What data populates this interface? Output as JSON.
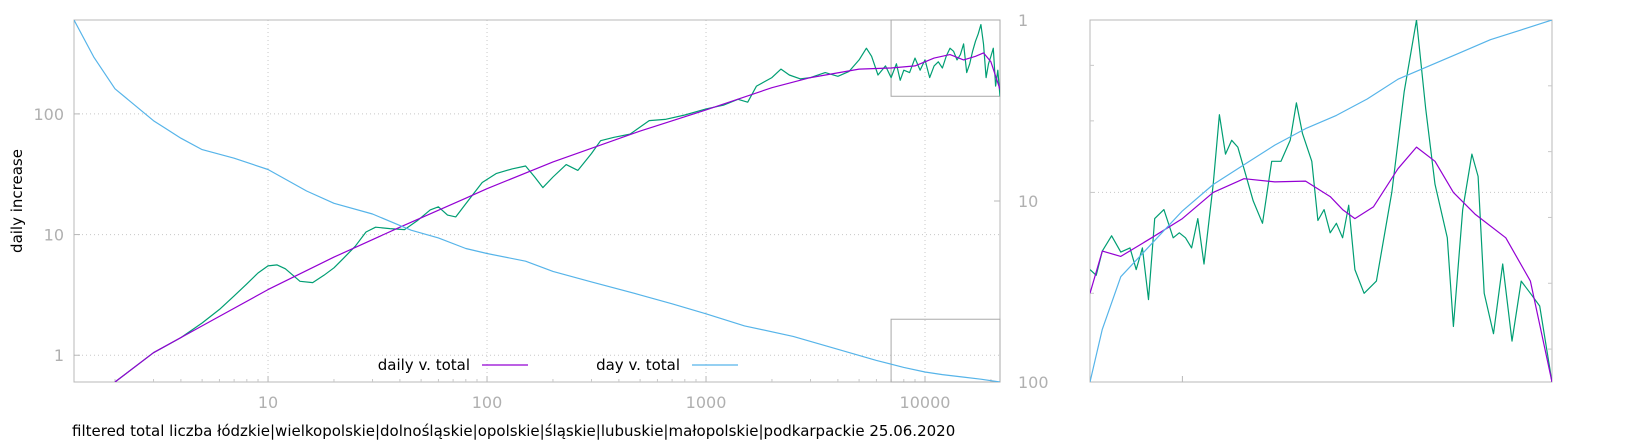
{
  "chart_data": [
    {
      "type": "line",
      "ylabel": "daily increase",
      "xlog": true,
      "ylog": true,
      "xlim": [
        1.3,
        22000
      ],
      "ylim": [
        0.6,
        600
      ],
      "y2lim": [
        1,
        100
      ],
      "y2_reversed": true,
      "grid": true,
      "legend_position": "bottom-center",
      "x_ticks": [
        10,
        100,
        1000,
        10000
      ],
      "x_tick_labels": [
        "10",
        "100",
        "1000",
        "10000"
      ],
      "y_ticks": [
        1,
        10,
        100
      ],
      "y_tick_labels": [
        "1",
        "10",
        "100"
      ],
      "y2_ticks": [
        1,
        10,
        100
      ],
      "y2_tick_labels": [
        "1",
        "10",
        "100"
      ],
      "zoom_box": {
        "x": [
          7000,
          22000
        ],
        "y": [
          140,
          600
        ]
      },
      "zoom_box_y2": {
        "x": [
          7000,
          22000
        ],
        "y": [
          45,
          100
        ]
      },
      "colors": {
        "daily_raw": "#009e73",
        "daily_smooth": "#9400d3",
        "day": "#56b4e9"
      },
      "series": [
        {
          "name": "daily v. total",
          "axis": "y",
          "points": [
            [
              2,
              0.6
            ],
            [
              3,
              1.05
            ],
            [
              4,
              1.4
            ],
            [
              5,
              1.85
            ],
            [
              6,
              2.4
            ],
            [
              7,
              3.1
            ],
            [
              8,
              3.9
            ],
            [
              9,
              4.8
            ],
            [
              10,
              5.5
            ],
            [
              11,
              5.6
            ],
            [
              12,
              5.2
            ],
            [
              14,
              4.1
            ],
            [
              16,
              4.0
            ],
            [
              18,
              4.6
            ],
            [
              20,
              5.3
            ],
            [
              22,
              6.3
            ],
            [
              25,
              8.0
            ],
            [
              28,
              10.5
            ],
            [
              31,
              11.5
            ],
            [
              36,
              11.2
            ],
            [
              42,
              11.0
            ],
            [
              48,
              13.0
            ],
            [
              55,
              16.0
            ],
            [
              60,
              17.0
            ],
            [
              66,
              14.5
            ],
            [
              72,
              14.0
            ],
            [
              80,
              18.0
            ],
            [
              95,
              27.0
            ],
            [
              110,
              32.0
            ],
            [
              130,
              35.0
            ],
            [
              150,
              37.0
            ],
            [
              165,
              30.0
            ],
            [
              180,
              24.5
            ],
            [
              200,
              30.0
            ],
            [
              230,
              38.0
            ],
            [
              260,
              34.0
            ],
            [
              300,
              47.0
            ],
            [
              330,
              60.0
            ],
            [
              380,
              64.0
            ],
            [
              450,
              68.0
            ],
            [
              550,
              88.0
            ],
            [
              650,
              90.0
            ],
            [
              800,
              98.0
            ],
            [
              1000,
              110
            ],
            [
              1200,
              118
            ],
            [
              1400,
              132
            ],
            [
              1550,
              125
            ],
            [
              1700,
              170
            ],
            [
              2000,
              200
            ],
            [
              2200,
              235
            ],
            [
              2400,
              210
            ],
            [
              2700,
              195
            ],
            [
              3000,
              200
            ],
            [
              3500,
              220
            ],
            [
              4000,
              205
            ],
            [
              4500,
              225
            ],
            [
              5000,
              280
            ],
            [
              5400,
              350
            ],
            [
              5700,
              300
            ],
            [
              6100,
              210
            ],
            [
              6600,
              250
            ],
            [
              7000,
              200
            ],
            [
              7400,
              260
            ],
            [
              7700,
              190
            ],
            [
              8000,
              230
            ],
            [
              8500,
              220
            ],
            [
              9000,
              290
            ],
            [
              9500,
              230
            ],
            [
              10000,
              280
            ],
            [
              10500,
              200
            ],
            [
              11000,
              250
            ],
            [
              11500,
              270
            ],
            [
              12000,
              240
            ],
            [
              12500,
              300
            ],
            [
              13000,
              350
            ],
            [
              13500,
              330
            ],
            [
              14000,
              280
            ],
            [
              14500,
              310
            ],
            [
              15000,
              380
            ],
            [
              15500,
              220
            ],
            [
              16000,
              260
            ],
            [
              16500,
              330
            ],
            [
              17000,
              400
            ],
            [
              17500,
              460
            ],
            [
              18000,
              550
            ],
            [
              18500,
              380
            ],
            [
              19000,
              200
            ],
            [
              19500,
              260
            ],
            [
              20000,
              300
            ],
            [
              20500,
              350
            ],
            [
              21000,
              170
            ],
            [
              21500,
              230
            ],
            [
              22000,
              140
            ]
          ]
        },
        {
          "name": "",
          "axis": "y",
          "points": [
            [
              2,
              0.6
            ],
            [
              3,
              1.05
            ],
            [
              5,
              1.75
            ],
            [
              10,
              3.5
            ],
            [
              20,
              6.5
            ],
            [
              40,
              11.5
            ],
            [
              80,
              20.0
            ],
            [
              100,
              24.0
            ],
            [
              200,
              40.0
            ],
            [
              500,
              72.0
            ],
            [
              1000,
              108
            ],
            [
              2000,
              165
            ],
            [
              3000,
              200
            ],
            [
              5000,
              235
            ],
            [
              7000,
              240
            ],
            [
              9000,
              250
            ],
            [
              11000,
              290
            ],
            [
              13000,
              310
            ],
            [
              15000,
              280
            ],
            [
              17000,
              300
            ],
            [
              18500,
              320
            ],
            [
              20000,
              270
            ],
            [
              22000,
              160
            ]
          ]
        },
        {
          "name": "day v. total",
          "axis": "y2",
          "points": [
            [
              1.3,
              1
            ],
            [
              1.6,
              1.6
            ],
            [
              2,
              2.4
            ],
            [
              3,
              3.6
            ],
            [
              4,
              4.5
            ],
            [
              5,
              5.2
            ],
            [
              7,
              5.8
            ],
            [
              10,
              6.7
            ],
            [
              15,
              8.8
            ],
            [
              20,
              10.3
            ],
            [
              30,
              11.8
            ],
            [
              45,
              14.5
            ],
            [
              60,
              16.0
            ],
            [
              80,
              18.3
            ],
            [
              100,
              19.5
            ],
            [
              150,
              21.5
            ],
            [
              200,
              24.5
            ],
            [
              300,
              28.0
            ],
            [
              500,
              33.0
            ],
            [
              700,
              37.0
            ],
            [
              1000,
              42.0
            ],
            [
              1500,
              49.0
            ],
            [
              2500,
              56.0
            ],
            [
              4000,
              66.0
            ],
            [
              6000,
              76.0
            ],
            [
              8000,
              83.0
            ],
            [
              10000,
              88.0
            ],
            [
              12000,
              91.0
            ],
            [
              15000,
              94.0
            ],
            [
              18000,
              96.5
            ],
            [
              22000,
              100
            ]
          ]
        }
      ]
    },
    {
      "type": "line",
      "ylog": true,
      "xlim": [
        7000,
        22000
      ],
      "ylim": [
        140,
        600
      ],
      "y2lim": [
        45,
        100
      ],
      "grid": true,
      "series": [
        {
          "name": "daily v. total",
          "axis": "y",
          "points": [
            [
              7000,
              220
            ],
            [
              7200,
              215
            ],
            [
              7400,
              237
            ],
            [
              7700,
              252
            ],
            [
              8000,
              236
            ],
            [
              8300,
              240
            ],
            [
              8500,
              220
            ],
            [
              8700,
              240
            ],
            [
              8900,
              195
            ],
            [
              9100,
              270
            ],
            [
              9400,
              280
            ],
            [
              9700,
              250
            ],
            [
              9900,
              255
            ],
            [
              10100,
              250
            ],
            [
              10300,
              240
            ],
            [
              10500,
              270
            ],
            [
              10700,
              225
            ],
            [
              11000,
              310
            ],
            [
              11200,
              410
            ],
            [
              11400,
              350
            ],
            [
              11600,
              370
            ],
            [
              11800,
              360
            ],
            [
              12000,
              330
            ],
            [
              12300,
              290
            ],
            [
              12600,
              265
            ],
            [
              12900,
              340
            ],
            [
              13200,
              340
            ],
            [
              13500,
              370
            ],
            [
              13700,
              430
            ],
            [
              13900,
              380
            ],
            [
              14200,
              340
            ],
            [
              14400,
              268
            ],
            [
              14600,
              280
            ],
            [
              14800,
              255
            ],
            [
              15000,
              265
            ],
            [
              15200,
              250
            ],
            [
              15400,
              285
            ],
            [
              15600,
              220
            ],
            [
              15900,
              200
            ],
            [
              16300,
              210
            ],
            [
              16800,
              300
            ],
            [
              17200,
              450
            ],
            [
              17600,
              600
            ],
            [
              17900,
              420
            ],
            [
              18200,
              310
            ],
            [
              18600,
              250
            ],
            [
              18800,
              175
            ],
            [
              19100,
              280
            ],
            [
              19400,
              350
            ],
            [
              19600,
              320
            ],
            [
              19800,
              200
            ],
            [
              20100,
              170
            ],
            [
              20400,
              225
            ],
            [
              20700,
              165
            ],
            [
              21000,
              210
            ],
            [
              21300,
              200
            ],
            [
              21600,
              190
            ],
            [
              22000,
              140
            ]
          ]
        },
        {
          "name": "",
          "axis": "y",
          "points": [
            [
              7000,
              200
            ],
            [
              7400,
              237
            ],
            [
              8000,
              232
            ],
            [
              9000,
              250
            ],
            [
              10000,
              270
            ],
            [
              11000,
              300
            ],
            [
              12000,
              317
            ],
            [
              13000,
              313
            ],
            [
              14000,
              314
            ],
            [
              14800,
              295
            ],
            [
              15200,
              280
            ],
            [
              15600,
              270
            ],
            [
              16200,
              283
            ],
            [
              17000,
              330
            ],
            [
              17600,
              360
            ],
            [
              18200,
              340
            ],
            [
              18800,
              300
            ],
            [
              19500,
              275
            ],
            [
              20500,
              250
            ],
            [
              21300,
              210
            ],
            [
              22000,
              140
            ]
          ]
        },
        {
          "name": "day v. total",
          "axis": "y2",
          "points": [
            [
              7000,
              45
            ],
            [
              7400,
              53
            ],
            [
              8000,
              61
            ],
            [
              9000,
              66
            ],
            [
              10000,
              71
            ],
            [
              11000,
              75
            ],
            [
              12000,
              78
            ],
            [
              13000,
              81
            ],
            [
              14000,
              83.5
            ],
            [
              15000,
              85.5
            ],
            [
              16000,
              88
            ],
            [
              17000,
              91
            ],
            [
              18000,
              93
            ],
            [
              19000,
              95
            ],
            [
              20000,
              97
            ],
            [
              21000,
              98.5
            ],
            [
              22000,
              100
            ]
          ]
        }
      ]
    }
  ],
  "caption": "filtered total liczba łódzkie|wielkopolskie|dolnośląskie|opolskie|śląskie|lubuskie|małopolskie|podkarpackie 25.06.2020"
}
